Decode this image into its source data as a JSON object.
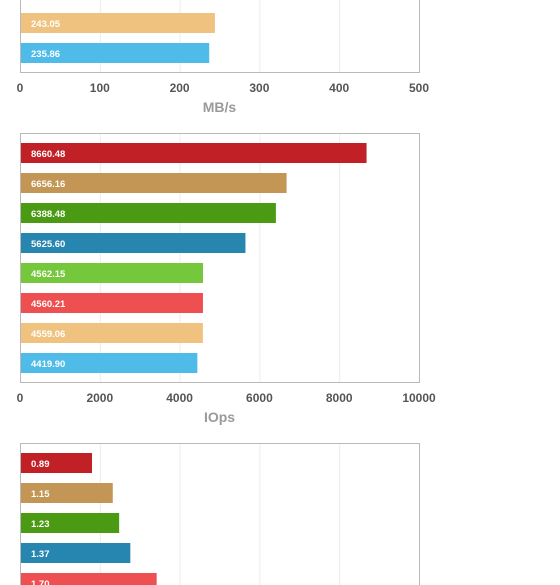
{
  "chart_data": [
    {
      "type": "bar",
      "orientation": "horizontal",
      "xlabel": "MB/s",
      "xlim": [
        0,
        500
      ],
      "ticks": [
        0,
        100,
        200,
        300,
        400,
        500
      ],
      "grid": true,
      "bars": [
        {
          "label": "243.05",
          "value": 243.05,
          "color": "#efc37f"
        },
        {
          "label": "235.86",
          "value": 235.86,
          "color": "#4ebbe8"
        }
      ]
    },
    {
      "type": "bar",
      "orientation": "horizontal",
      "xlabel": "IOps",
      "xlim": [
        0,
        10000
      ],
      "ticks": [
        0,
        2000,
        4000,
        6000,
        8000,
        10000
      ],
      "grid": true,
      "bars": [
        {
          "label": "8660.48",
          "value": 8660.48,
          "color": "#c12027"
        },
        {
          "label": "6656.16",
          "value": 6656.16,
          "color": "#c39655"
        },
        {
          "label": "6388.48",
          "value": 6388.48,
          "color": "#4a9a13"
        },
        {
          "label": "5625.60",
          "value": 5625.6,
          "color": "#2786b0"
        },
        {
          "label": "4562.15",
          "value": 4562.15,
          "color": "#75c73c"
        },
        {
          "label": "4560.21",
          "value": 4560.21,
          "color": "#ee4f50"
        },
        {
          "label": "4559.06",
          "value": 4559.06,
          "color": "#efc37f"
        },
        {
          "label": "4419.90",
          "value": 4419.9,
          "color": "#4ebbe8"
        }
      ]
    },
    {
      "type": "bar",
      "orientation": "horizontal",
      "xlabel": "",
      "xlim": [
        0,
        5
      ],
      "grid": true,
      "bars": [
        {
          "label": "0.89",
          "value": 0.89,
          "color": "#c12027"
        },
        {
          "label": "1.15",
          "value": 1.15,
          "color": "#c39655"
        },
        {
          "label": "1.23",
          "value": 1.23,
          "color": "#4a9a13"
        },
        {
          "label": "1.37",
          "value": 1.37,
          "color": "#2786b0"
        },
        {
          "label": "1.70",
          "value": 1.7,
          "color": "#ee4f50"
        }
      ]
    }
  ]
}
